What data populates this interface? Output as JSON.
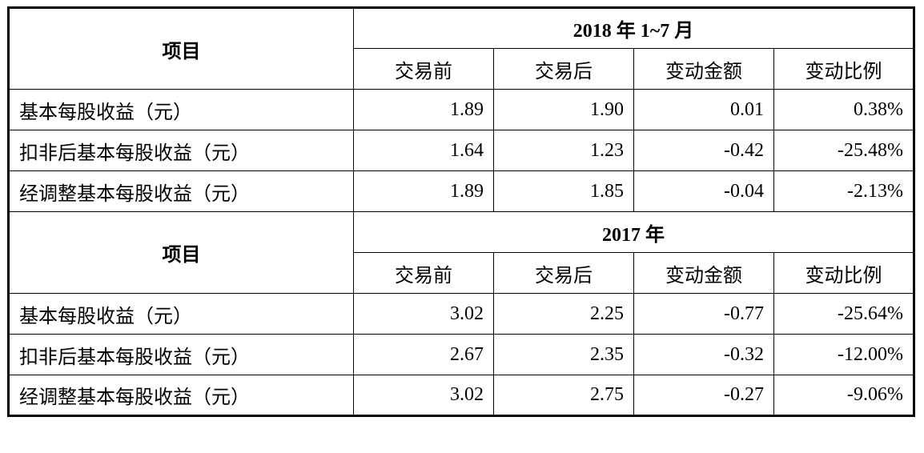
{
  "sections": [
    {
      "header": {
        "item": "项目",
        "period": "2018 年 1~7 月",
        "columns": [
          "交易前",
          "交易后",
          "变动金额",
          "变动比例"
        ]
      },
      "rows": [
        [
          "基本每股收益（元）",
          "1.89",
          "1.90",
          "0.01",
          "0.38%"
        ],
        [
          "扣非后基本每股收益（元）",
          "1.64",
          "1.23",
          "-0.42",
          "-25.48%"
        ],
        [
          "经调整基本每股收益（元）",
          "1.89",
          "1.85",
          "-0.04",
          "-2.13%"
        ]
      ]
    },
    {
      "header": {
        "item": "项目",
        "period": "2017 年",
        "columns": [
          "交易前",
          "交易后",
          "变动金额",
          "变动比例"
        ]
      },
      "rows": [
        [
          "基本每股收益（元）",
          "3.02",
          "2.25",
          "-0.77",
          "-25.64%"
        ],
        [
          "扣非后基本每股收益（元）",
          "2.67",
          "2.35",
          "-0.32",
          "-12.00%"
        ],
        [
          "经调整基本每股收益（元）",
          "3.02",
          "2.75",
          "-0.27",
          "-9.06%"
        ]
      ]
    }
  ]
}
